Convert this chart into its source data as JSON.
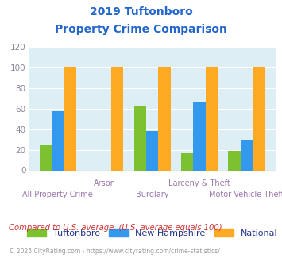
{
  "title_line1": "2019 Tuftonboro",
  "title_line2": "Property Crime Comparison",
  "categories": [
    "All Property Crime",
    "Arson",
    "Burglary",
    "Larceny & Theft",
    "Motor Vehicle Theft"
  ],
  "tuftonboro": [
    24,
    0,
    62,
    17,
    19
  ],
  "new_hampshire": [
    58,
    0,
    38,
    66,
    30
  ],
  "national": [
    100,
    100,
    100,
    100,
    100
  ],
  "color_tuftonboro": "#7cc230",
  "color_nh": "#3399ee",
  "color_national": "#ffaa22",
  "ylim": [
    0,
    120
  ],
  "yticks": [
    0,
    20,
    40,
    60,
    80,
    100,
    120
  ],
  "bg_color": "#ddeef4",
  "grid_color": "#ffffff",
  "title_color": "#2266cc",
  "xlabel_color": "#9977aa",
  "tick_color": "#888899",
  "legend_text_color": "#223388",
  "legend_labels": [
    "Tuftonboro",
    "New Hampshire",
    "National"
  ],
  "footnote1": "Compared to U.S. average. (U.S. average equals 100)",
  "footnote2": "© 2025 CityRating.com - https://www.cityrating.com/crime-statistics/",
  "footnote1_color": "#cc3333",
  "footnote2_color": "#999999"
}
